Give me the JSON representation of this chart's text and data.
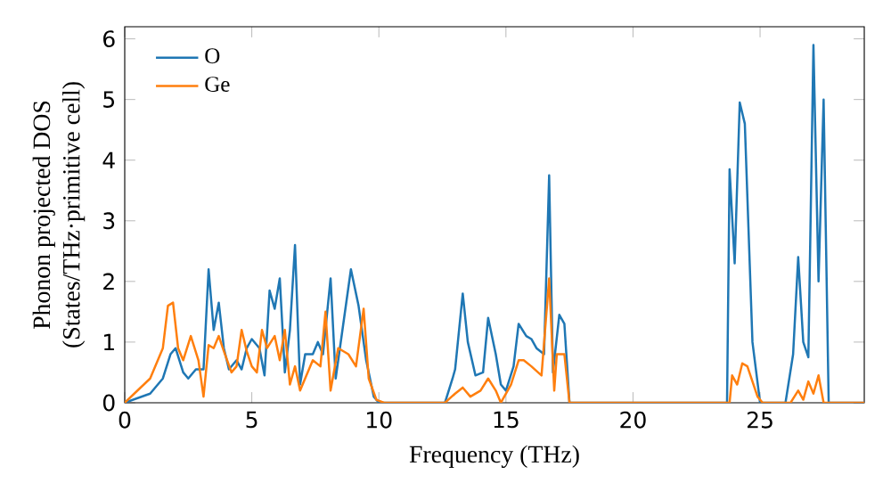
{
  "chart_data": {
    "type": "line",
    "xlabel": "Frequency (THz)",
    "ylabel": "Phonon projected DOS\n(States/THz·primitive cell)",
    "xlim": [
      0,
      29.1
    ],
    "ylim": [
      0,
      6.2
    ],
    "xticks": [
      0,
      5,
      10,
      15,
      20,
      25
    ],
    "yticks": [
      0,
      1,
      2,
      3,
      4,
      5,
      6
    ],
    "legend": "top left",
    "grid": false,
    "series": [
      {
        "name": "O",
        "color": "#1f77b4",
        "x": [
          0,
          1,
          1.5,
          1.8,
          2,
          2.3,
          2.5,
          2.8,
          3.1,
          3.3,
          3.5,
          3.7,
          3.9,
          4.1,
          4.4,
          4.6,
          4.8,
          5,
          5.3,
          5.5,
          5.7,
          5.9,
          6.1,
          6.3,
          6.5,
          6.7,
          6.9,
          7.1,
          7.4,
          7.6,
          7.8,
          8.1,
          8.3,
          8.6,
          8.9,
          9.2,
          9.5,
          9.8,
          10,
          12.6,
          12.9,
          13,
          13.3,
          13.5,
          13.8,
          14.1,
          14.3,
          14.6,
          14.8,
          15,
          15.3,
          15.5,
          15.8,
          16,
          16.2,
          16.5,
          16.7,
          16.85,
          17.1,
          17.3,
          17.5,
          23.7,
          23.8,
          24,
          24.2,
          24.4,
          24.7,
          25,
          26,
          26.3,
          26.5,
          26.7,
          26.9,
          27.1,
          27.3,
          27.5,
          27.7,
          29.1
        ],
        "values": [
          0,
          0.15,
          0.4,
          0.8,
          0.9,
          0.5,
          0.4,
          0.55,
          0.55,
          2.2,
          1.2,
          1.65,
          0.9,
          0.55,
          0.7,
          0.55,
          0.9,
          1.05,
          0.9,
          0.45,
          1.85,
          1.55,
          2.05,
          0.5,
          1.2,
          2.6,
          0.3,
          0.8,
          0.8,
          1.0,
          0.8,
          2.05,
          0.4,
          1.3,
          2.2,
          1.6,
          0.7,
          0.1,
          0,
          0,
          0.4,
          0.55,
          1.8,
          1.0,
          0.45,
          0.5,
          1.4,
          0.8,
          0.3,
          0.2,
          0.6,
          1.3,
          1.1,
          1.05,
          0.9,
          0.8,
          3.75,
          0.5,
          1.45,
          1.3,
          0,
          0,
          3.85,
          2.3,
          4.95,
          4.6,
          1.0,
          0,
          0,
          0.8,
          2.4,
          1.0,
          0.75,
          5.9,
          2.0,
          5.0,
          0,
          0
        ]
      },
      {
        "name": "Ge",
        "color": "#ff7f0e",
        "x": [
          0,
          1,
          1.5,
          1.7,
          1.9,
          2.1,
          2.3,
          2.6,
          2.9,
          3.1,
          3.3,
          3.5,
          3.7,
          3.9,
          4.2,
          4.4,
          4.6,
          4.8,
          5,
          5.2,
          5.4,
          5.6,
          5.9,
          6.1,
          6.3,
          6.5,
          6.7,
          6.9,
          7.1,
          7.4,
          7.7,
          7.9,
          8.1,
          8.4,
          8.8,
          9.1,
          9.4,
          9.6,
          9.9,
          10.2,
          12.6,
          13,
          13.3,
          13.6,
          14,
          14.3,
          14.6,
          14.8,
          15.2,
          15.5,
          15.7,
          16,
          16.4,
          16.7,
          16.9,
          17,
          17.3,
          17.5,
          23.8,
          23.9,
          24.1,
          24.3,
          24.5,
          24.9,
          25.1,
          26.2,
          26.5,
          26.7,
          26.9,
          27.1,
          27.3,
          27.5,
          29.1
        ],
        "values": [
          0,
          0.4,
          0.9,
          1.6,
          1.65,
          0.9,
          0.7,
          1.1,
          0.7,
          0.1,
          0.95,
          0.9,
          1.1,
          0.85,
          0.5,
          0.6,
          1.2,
          0.85,
          0.6,
          0.5,
          1.2,
          0.9,
          1.1,
          0.7,
          1.2,
          0.3,
          0.6,
          0.2,
          0.4,
          0.7,
          0.6,
          1.5,
          0.2,
          0.9,
          0.8,
          0.6,
          1.55,
          0.4,
          0.05,
          0,
          0,
          0.15,
          0.25,
          0.1,
          0.2,
          0.4,
          0.2,
          0,
          0.3,
          0.7,
          0.7,
          0.6,
          0.45,
          2.05,
          0.2,
          0.8,
          0.8,
          0,
          0,
          0.45,
          0.3,
          0.65,
          0.6,
          0.1,
          0,
          0,
          0.2,
          0.05,
          0.35,
          0.15,
          0.45,
          0,
          0
        ]
      }
    ]
  }
}
